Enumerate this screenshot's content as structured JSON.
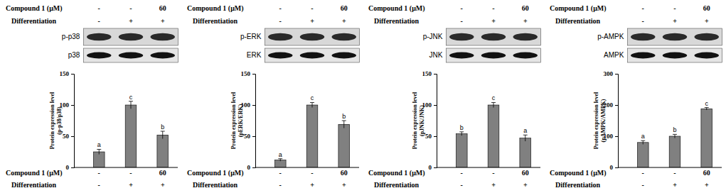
{
  "chart_data": [
    {
      "type": "bar",
      "categories": [
        null,
        null,
        null
      ],
      "values": [
        25,
        100,
        52
      ],
      "errors": [
        4,
        6,
        6
      ],
      "letters": [
        "a",
        "c",
        "b"
      ],
      "y_label": [
        "Protein expression level",
        "(p-p38/p38)"
      ],
      "ylim": [
        0,
        150
      ],
      "yticks": [
        0,
        50,
        100,
        150
      ],
      "color": "#808080",
      "blots": [
        "p-p38",
        "p38"
      ],
      "conditions": [
        {
          "label": "Compound 1 (μM)",
          "entries": [
            "-",
            "-",
            "60"
          ]
        },
        {
          "label": "Differentiation",
          "entries": [
            "-",
            "+",
            "+"
          ]
        }
      ]
    },
    {
      "type": "bar",
      "categories": [
        null,
        null,
        null
      ],
      "values": [
        12,
        100,
        69
      ],
      "errors": [
        2,
        4,
        6
      ],
      "letters": [
        "a",
        "c",
        "b"
      ],
      "y_label": [
        "Protein expression level",
        "(pERK/ERK)"
      ],
      "ylim": [
        0,
        150
      ],
      "yticks": [
        0,
        50,
        100,
        150
      ],
      "color": "#808080",
      "blots": [
        "p-ERK",
        "ERK"
      ],
      "conditions": [
        {
          "label": "Compound 1 (μM)",
          "entries": [
            "-",
            "-",
            "60"
          ]
        },
        {
          "label": "Differentiation",
          "entries": [
            "-",
            "+",
            "+"
          ]
        }
      ]
    },
    {
      "type": "bar",
      "categories": [
        null,
        null,
        null
      ],
      "values": [
        54,
        100,
        47
      ],
      "errors": [
        3,
        4,
        5
      ],
      "letters": [
        "b",
        "c",
        "a"
      ],
      "y_label": [
        "Protein expression level",
        "(pJNK/JNK)"
      ],
      "ylim": [
        0,
        150
      ],
      "yticks": [
        0,
        50,
        100,
        150
      ],
      "color": "#808080",
      "blots": [
        "p-JNK",
        "JNK"
      ],
      "conditions": [
        {
          "label": "Compound 1 (μM)",
          "entries": [
            "-",
            "-",
            "60"
          ]
        },
        {
          "label": "Differentiation",
          "entries": [
            "-",
            "+",
            "+"
          ]
        }
      ]
    },
    {
      "type": "bar",
      "categories": [
        null,
        null,
        null
      ],
      "values": [
        80,
        100,
        188
      ],
      "errors": [
        6,
        6,
        4
      ],
      "letters": [
        "a",
        "b",
        "c"
      ],
      "y_label": [
        "Protein expression level",
        "(pAMPK/AMPK)"
      ],
      "ylim": [
        0,
        300
      ],
      "yticks": [
        0,
        100,
        200,
        300
      ],
      "color": "#808080",
      "blots": [
        "p-AMPK",
        "AMPK"
      ],
      "conditions": [
        {
          "label": "Compound 1 (μM)",
          "entries": [
            "-",
            "-",
            "60"
          ]
        },
        {
          "label": "Differentiation",
          "entries": [
            "-",
            "+",
            "+"
          ]
        }
      ]
    }
  ]
}
